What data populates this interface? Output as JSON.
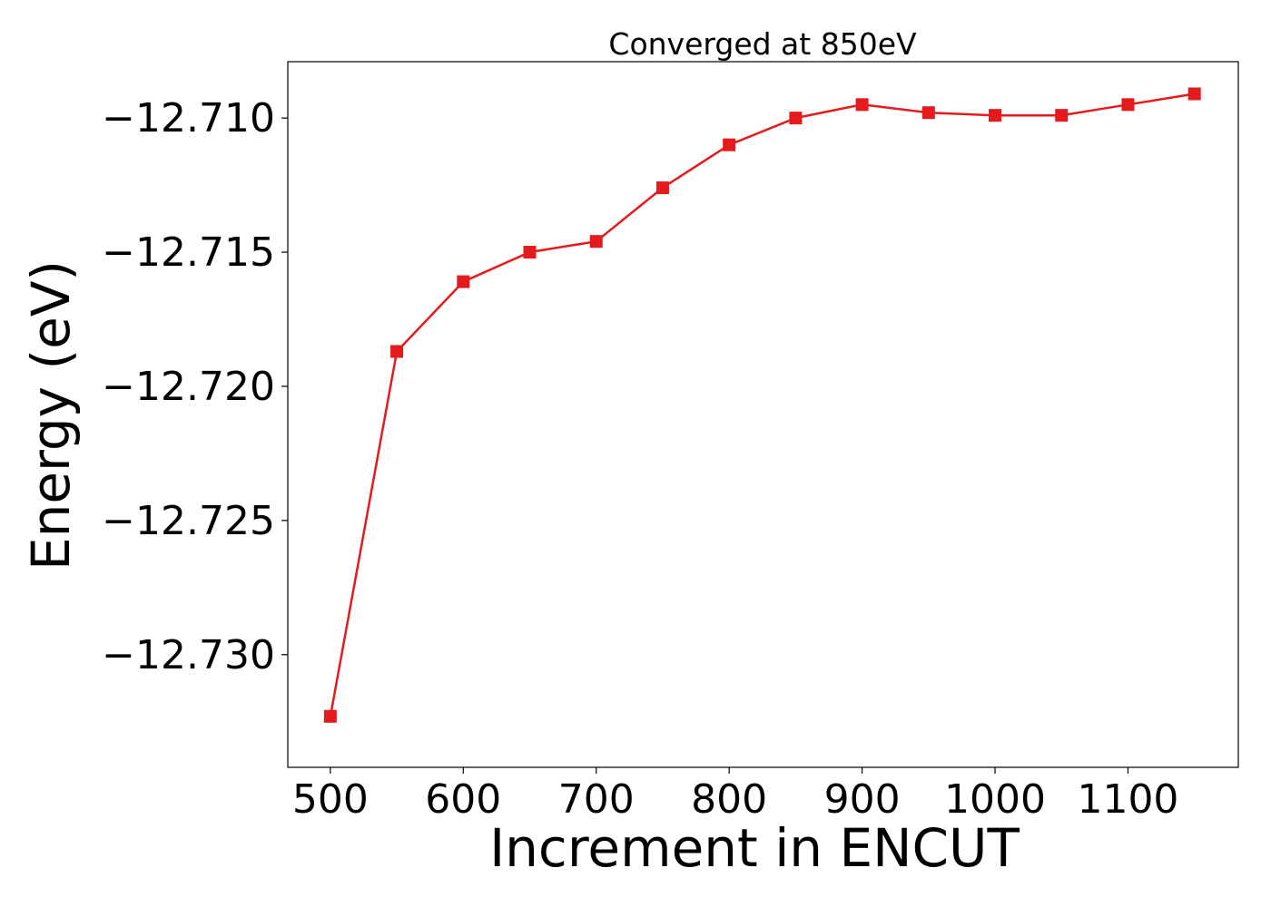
{
  "chart_data": {
    "type": "line",
    "title": "Converged at 850eV",
    "xlabel": "Increment in ENCUT",
    "ylabel": "Energy (eV)",
    "xlim": [
      468,
      1183
    ],
    "ylim": [
      -12.7342,
      -12.7079
    ],
    "x_ticks": [
      500,
      600,
      700,
      800,
      900,
      1000,
      1100
    ],
    "x_tick_labels": [
      "500",
      "600",
      "700",
      "800",
      "900",
      "1000",
      "1100"
    ],
    "y_ticks": [
      -12.71,
      -12.715,
      -12.72,
      -12.725,
      -12.73
    ],
    "y_tick_labels": [
      "−12.710",
      "−12.715",
      "−12.720",
      "−12.725",
      "−12.730"
    ],
    "grid": false,
    "legend": "none",
    "series": [
      {
        "color": "#e41a1c",
        "marker": "square",
        "x": [
          500,
          550,
          600,
          650,
          700,
          750,
          800,
          850,
          900,
          950,
          1000,
          1050,
          1100,
          1150
        ],
        "y": [
          -12.7323,
          -12.7187,
          -12.7161,
          -12.715,
          -12.7146,
          -12.7126,
          -12.711,
          -12.71,
          -12.7095,
          -12.7098,
          -12.7099,
          -12.7099,
          -12.7095,
          -12.7091
        ]
      }
    ]
  }
}
